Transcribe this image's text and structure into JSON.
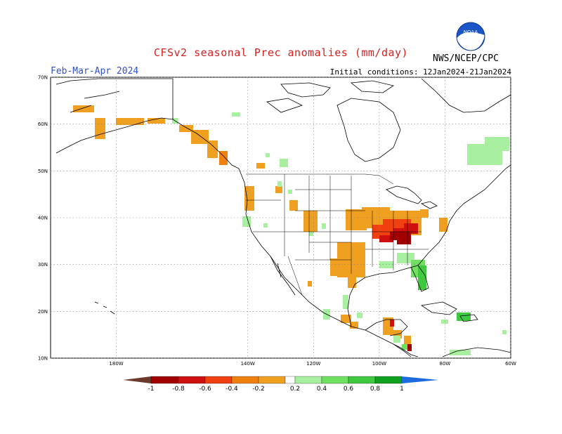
{
  "header": {
    "title": "CFSv2 seasonal Prec anomalies (mm/day)",
    "season": "Feb-Mar-Apr 2024",
    "initial_conditions": "Initial conditions: 12Jan2024-21Jan2024",
    "agency": "NWS/NCEP/CPC",
    "logo_text": "NOAA"
  },
  "map": {
    "lat_labels": [
      "70N",
      "60N",
      "50N",
      "40N",
      "30N",
      "20N",
      "10N"
    ],
    "lon_labels": [
      "180W",
      "140W",
      "120W",
      "100W",
      "80W",
      "60W"
    ],
    "lat_values": [
      70,
      60,
      50,
      40,
      30,
      20,
      10
    ],
    "lon_values": [
      -180,
      -140,
      -120,
      -100,
      -80,
      -60
    ],
    "lon_range": [
      -200,
      -60
    ],
    "lat_range": [
      10,
      70
    ]
  },
  "colorbar": {
    "labels": [
      "-1",
      "-0.8",
      "-0.6",
      "-0.4",
      "-0.2",
      "0.2",
      "0.4",
      "0.6",
      "0.8",
      "1"
    ],
    "colors": [
      "#6b3a2a",
      "#a00000",
      "#d01010",
      "#f04010",
      "#f08010",
      "#f0a020",
      "#ffffff",
      "#a8f0a0",
      "#70e060",
      "#40c840",
      "#10a020",
      "#1e6be0"
    ]
  }
}
